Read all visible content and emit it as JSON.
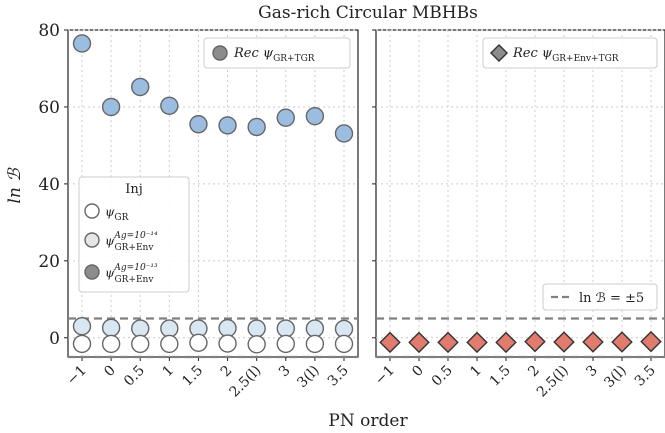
{
  "figure_title": "Gas-rich Circular MBHBs",
  "chart_data": [
    {
      "type": "scatter",
      "panel": "left",
      "categories": [
        "−1",
        "0",
        "0.5",
        "1",
        "1.5",
        "2",
        "2.5(l)",
        "3",
        "3(l)",
        "3.5"
      ],
      "xlabel": "PN order",
      "ylabel": "ln ℬ",
      "ylim": [
        -5,
        80
      ],
      "yticks": [
        0,
        20,
        40,
        60,
        80
      ],
      "grid": true,
      "threshold_lines": [
        5,
        -5
      ],
      "series": [
        {
          "name": "Rec ψ_GR+TGR",
          "marker": "circle",
          "color": "#9bbde0",
          "values": [
            76.5,
            60,
            65.2,
            60.3,
            55.5,
            55.2,
            54.8,
            57.2,
            57.6,
            53.1
          ]
        },
        {
          "name": "ψ_GR+Env^{Ag=10⁻¹⁴}",
          "marker": "circle",
          "color": "#d9e7f3",
          "values": [
            3.0,
            2.6,
            2.4,
            2.4,
            2.4,
            2.5,
            2.4,
            2.4,
            2.4,
            2.3
          ]
        },
        {
          "name": "ψ_GR",
          "marker": "circle",
          "color": "#ffffff",
          "values": [
            -1.6,
            -1.6,
            -1.6,
            -1.6,
            -1.3,
            -1.5,
            -1.7,
            -1.6,
            -1.6,
            -1.6
          ]
        }
      ],
      "legends": [
        {
          "position": "top-right",
          "entries": [
            {
              "marker": "circle",
              "color": "#8c8c8c",
              "label": "Rec ψ",
              "sub": "GR+TGR",
              "sup": ""
            }
          ]
        },
        {
          "position": "center-left",
          "title": "Inj",
          "entries": [
            {
              "marker": "circle",
              "color": "#ffffff",
              "label": "ψ",
              "sub": "GR",
              "sup": ""
            },
            {
              "marker": "circle",
              "color": "#e6e6e6",
              "label": "ψ",
              "sub": "GR+Env",
              "sup": "Ag=10⁻¹⁴"
            },
            {
              "marker": "circle",
              "color": "#8c8c8c",
              "label": "ψ",
              "sub": "GR+Env",
              "sup": "Ag=10⁻¹³"
            }
          ]
        }
      ]
    },
    {
      "type": "scatter",
      "panel": "right",
      "categories": [
        "−1",
        "0",
        "0.5",
        "1",
        "1.5",
        "2",
        "2.5(l)",
        "3",
        "3(l)",
        "3.5"
      ],
      "ylim": [
        -5,
        80
      ],
      "grid": true,
      "threshold_lines": [
        5,
        -5
      ],
      "series": [
        {
          "name": "Rec ψ_GR+Env+TGR",
          "marker": "diamond",
          "color": "#e07b6e",
          "values": [
            -1.2,
            -1.2,
            -1.2,
            -1.2,
            -1.2,
            -1.0,
            -1.1,
            -1.1,
            -1.1,
            -1.0
          ]
        }
      ],
      "legends": [
        {
          "position": "top-right",
          "entries": [
            {
              "marker": "diamond",
              "color": "#8c8c8c",
              "label": "Rec ψ",
              "sub": "GR+Env+TGR",
              "sup": ""
            }
          ]
        },
        {
          "position": "lower-right",
          "entries": [
            {
              "marker": "dashed-line",
              "color": "#808080",
              "label": "ln ℬ = ±5"
            }
          ]
        }
      ]
    }
  ]
}
